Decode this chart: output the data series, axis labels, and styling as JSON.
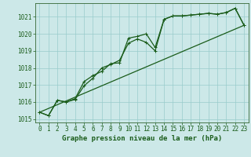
{
  "title": "Graphe pression niveau de la mer (hPa)",
  "background_color": "#cce8e8",
  "grid_color": "#99cccc",
  "line_color": "#1a5c1a",
  "spine_color": "#336633",
  "xlim": [
    -0.5,
    23.5
  ],
  "ylim": [
    1014.8,
    1021.8
  ],
  "yticks": [
    1015,
    1016,
    1017,
    1018,
    1019,
    1020,
    1021
  ],
  "xticks": [
    0,
    1,
    2,
    3,
    4,
    5,
    6,
    7,
    8,
    9,
    10,
    11,
    12,
    13,
    14,
    15,
    16,
    17,
    18,
    19,
    20,
    21,
    22,
    23
  ],
  "series1_x": [
    0,
    1,
    2,
    3,
    4,
    5,
    6,
    7,
    8,
    9,
    10,
    11,
    12,
    13,
    14,
    15,
    16,
    17,
    18,
    19,
    20,
    21,
    22,
    23
  ],
  "series1_y": [
    1015.4,
    1015.2,
    1016.1,
    1016.0,
    1016.2,
    1017.2,
    1017.55,
    1017.8,
    1018.25,
    1018.3,
    1019.75,
    1019.85,
    1020.0,
    1019.2,
    1020.85,
    1021.05,
    1021.05,
    1021.1,
    1021.15,
    1021.2,
    1021.15,
    1021.25,
    1021.5,
    1020.5
  ],
  "series2_x": [
    0,
    1,
    2,
    3,
    4,
    5,
    6,
    7,
    8,
    9,
    10,
    11,
    12,
    13,
    14,
    15,
    16,
    17,
    18,
    19,
    20,
    21,
    22,
    23
  ],
  "series2_y": [
    1015.4,
    1015.2,
    1016.1,
    1016.0,
    1016.15,
    1016.95,
    1017.4,
    1018.0,
    1018.2,
    1018.45,
    1019.45,
    1019.7,
    1019.5,
    1019.0,
    1020.85,
    1021.05,
    1021.05,
    1021.1,
    1021.15,
    1021.2,
    1021.15,
    1021.25,
    1021.5,
    1020.5
  ],
  "trend_x": [
    0,
    23
  ],
  "trend_y": [
    1015.4,
    1020.5
  ],
  "lw": 0.9,
  "ms": 2.5,
  "tick_fontsize": 5.5,
  "title_fontsize": 6.5
}
